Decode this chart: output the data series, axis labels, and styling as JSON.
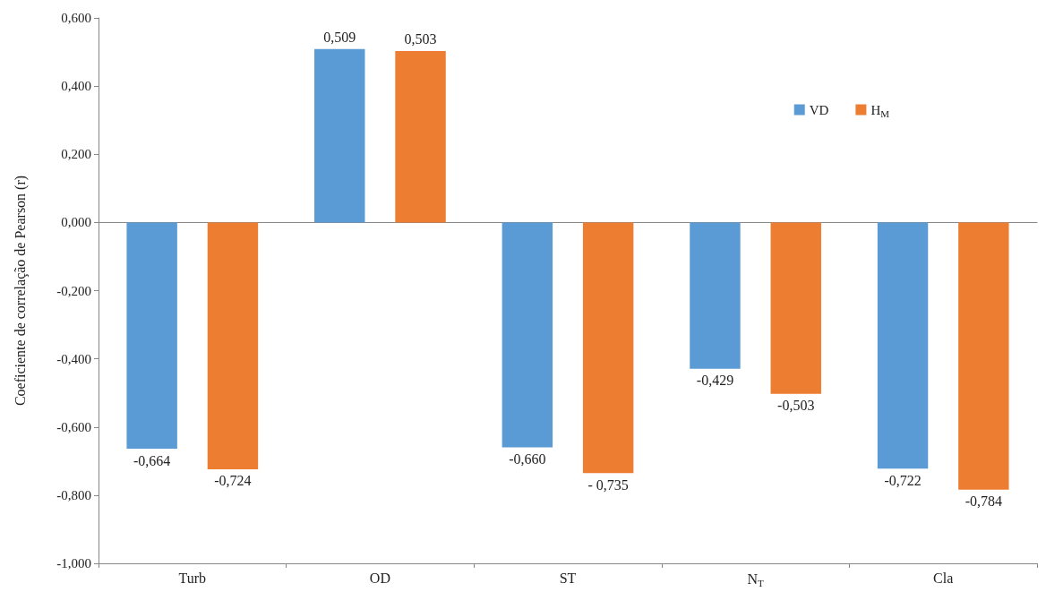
{
  "chart_data": {
    "type": "bar",
    "categories": [
      "Turb",
      "OD",
      "ST",
      "N$_{T}$",
      "Cla"
    ],
    "ylabel": "Coeficiente de correlação de Pearson (r)",
    "series": [
      {
        "name": "VD",
        "color": "#5b9bd5",
        "values": [
          -0.664,
          0.509,
          -0.66,
          -0.429,
          -0.722
        ],
        "value_labels": [
          "-0,664",
          "0,509",
          "-0,660",
          "-0,429",
          "-0,722"
        ]
      },
      {
        "name": "H$_{M}$",
        "color": "#ed7d31",
        "values": [
          -0.724,
          0.503,
          -0.735,
          -0.503,
          -0.784
        ],
        "value_labels": [
          "-0,724",
          "0,503",
          "- 0,735",
          "-0,503",
          "-0,784"
        ]
      }
    ],
    "ylim": [
      -1,
      0.6
    ],
    "yticks": [
      {
        "value": -1,
        "label": "-1,000"
      },
      {
        "value": -0.8,
        "label": "-0,800"
      },
      {
        "value": -0.6,
        "label": "-0,600"
      },
      {
        "value": -0.4,
        "label": "-0,400"
      },
      {
        "value": -0.2,
        "label": "-0,200"
      },
      {
        "value": 0,
        "label": "0,000"
      },
      {
        "value": 0.2,
        "label": "0,200"
      },
      {
        "value": 0.4,
        "label": "0,400"
      },
      {
        "value": 0.6,
        "label": "0,600"
      }
    ],
    "legend": "top right"
  }
}
